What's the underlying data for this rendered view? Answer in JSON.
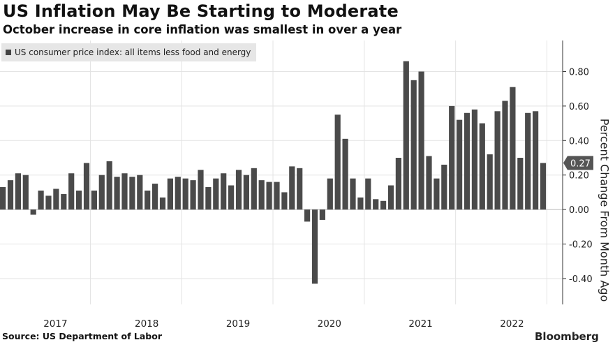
{
  "header": {
    "title": "US Inflation May Be Starting to Moderate",
    "subtitle": "October increase in core inflation was smallest in over a year"
  },
  "footer": {
    "source": "Source: US Department of Labor",
    "logo": "Bloomberg"
  },
  "colors": {
    "bar": "#4a4a4a",
    "grid": "#e3e3e3",
    "axis": "#333333",
    "callout_bg": "#555555",
    "callout_text": "#ffffff"
  },
  "chart_data": {
    "type": "bar",
    "title": "US Inflation May Be Starting to Moderate",
    "subtitle": "October increase in core inflation was smallest in over a year",
    "series": [
      {
        "name": "US consumer price index: all items less food and energy",
        "values": [
          0.13,
          0.17,
          0.21,
          0.2,
          -0.03,
          0.11,
          0.08,
          0.12,
          0.09,
          0.21,
          0.11,
          0.27,
          0.11,
          0.2,
          0.28,
          0.19,
          0.21,
          0.19,
          0.2,
          0.11,
          0.15,
          0.07,
          0.18,
          0.19,
          0.18,
          0.17,
          0.23,
          0.13,
          0.18,
          0.21,
          0.14,
          0.23,
          0.2,
          0.24,
          0.17,
          0.16,
          0.16,
          0.1,
          0.25,
          0.24,
          -0.07,
          -0.43,
          -0.06,
          0.18,
          0.55,
          0.41,
          0.18,
          0.07,
          0.18,
          0.06,
          0.05,
          0.14,
          0.3,
          0.86,
          0.75,
          0.8,
          0.31,
          0.18,
          0.26,
          0.6,
          0.52,
          0.56,
          0.58,
          0.5,
          0.32,
          0.57,
          0.63,
          0.71,
          0.3,
          0.56,
          0.57,
          0.27
        ]
      }
    ],
    "x_labels": [
      "2017",
      "2018",
      "2019",
      "2020",
      "2021",
      "2022"
    ],
    "yticks": [
      "0.80",
      "0.60",
      "0.40",
      "0.20",
      "0.00",
      "-0.20",
      "-0.40"
    ],
    "ylim": [
      -0.55,
      0.98
    ],
    "ylabel": "Percent Change From Month Ago",
    "last_value_label": "0.27",
    "grid": true,
    "legend_position": "top-left"
  }
}
